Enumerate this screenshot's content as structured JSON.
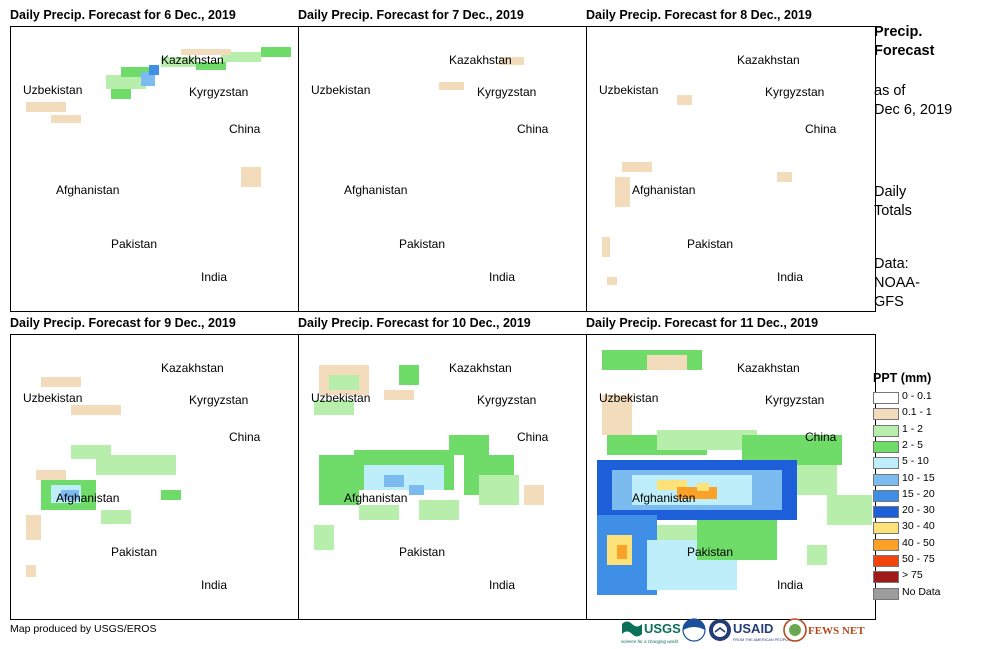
{
  "panels": [
    {
      "title": "Daily Precip. Forecast for 6 Dec., 2019"
    },
    {
      "title": "Daily Precip. Forecast for 7 Dec., 2019"
    },
    {
      "title": "Daily Precip. Forecast for 8 Dec., 2019"
    },
    {
      "title": "Daily Precip. Forecast for 9 Dec., 2019"
    },
    {
      "title": "Daily Precip. Forecast for 10 Dec., 2019"
    },
    {
      "title": "Daily Precip. Forecast for 11 Dec., 2019"
    }
  ],
  "places": {
    "kazakhstan": "Kazakhstan",
    "uzbekistan": "Uzbekistan",
    "kyrgyzstan": "Kyrgyzstan",
    "china": "China",
    "afghanistan": "Afghanistan",
    "pakistan": "Pakistan",
    "india": "India"
  },
  "sidebar": {
    "heading_line1": "Precip.",
    "heading_line2": "Forecast",
    "asof_line1": "as of",
    "asof_line2": "Dec 6, 2019",
    "totals_line1": "Daily",
    "totals_line2": "Totals",
    "data_line1": "Data:",
    "data_line2": "NOAA-",
    "data_line3": "GFS"
  },
  "legend": {
    "title": "PPT (mm)",
    "items": [
      {
        "label": "0 - 0.1",
        "color": "#ffffff"
      },
      {
        "label": "0.1 - 1",
        "color": "#f2dcbc"
      },
      {
        "label": "1 - 2",
        "color": "#b7eeab"
      },
      {
        "label": "2 - 5",
        "color": "#6fdc6a"
      },
      {
        "label": "5 - 10",
        "color": "#bdeefa"
      },
      {
        "label": "10 - 15",
        "color": "#7cbbf0"
      },
      {
        "label": "15 - 20",
        "color": "#3f8fe6"
      },
      {
        "label": "20 - 30",
        "color": "#1d5fd8"
      },
      {
        "label": "30 - 40",
        "color": "#fde27a"
      },
      {
        "label": "40 - 50",
        "color": "#fca128"
      },
      {
        "label": "50 - 75",
        "color": "#f2440f"
      },
      {
        "label": "> 75",
        "color": "#a01a1a"
      },
      {
        "label": "No Data",
        "color": "#9c9c9c"
      }
    ]
  },
  "credit": "Map produced by USGS/EROS",
  "logos": {
    "usgs": "USGS",
    "usgs_tagline": "science for a changing world",
    "usaid": "USAID",
    "usaid_tagline": "FROM THE AMERICAN PEOPLE",
    "fewsnet": "FEWS NET"
  }
}
